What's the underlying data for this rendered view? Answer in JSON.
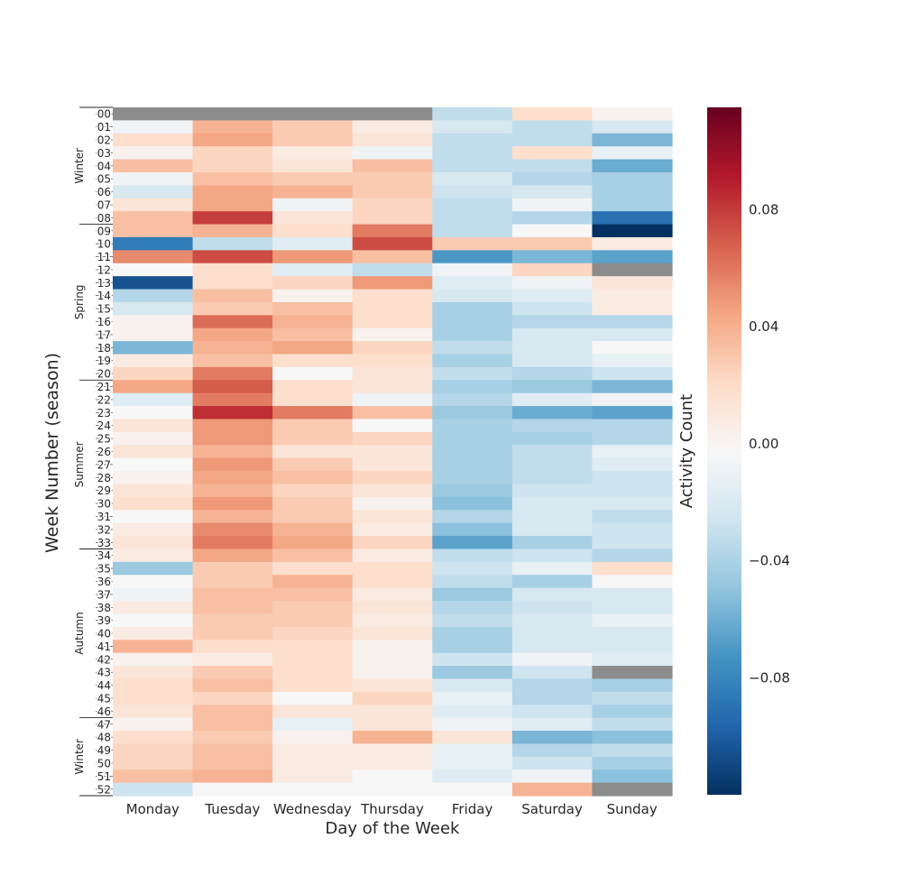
{
  "chart_data": {
    "type": "heatmap",
    "xlabel": "Day of the Week",
    "ylabel": "Week Number (season)",
    "colorbar_label": "Activity Count",
    "colormap": "RdBu_r",
    "vmin": -0.12,
    "vmax": 0.115,
    "colorbar_ticks": [
      {
        "value": 0.08,
        "label": "0.08"
      },
      {
        "value": 0.04,
        "label": "0.04"
      },
      {
        "value": 0.0,
        "label": "0.00"
      },
      {
        "value": -0.04,
        "label": "−0.04"
      },
      {
        "value": -0.08,
        "label": "−0.08"
      }
    ],
    "missing_color": "#8c8c8c",
    "columns": [
      "Monday",
      "Tuesday",
      "Wednesday",
      "Thursday",
      "Friday",
      "Saturday",
      "Sunday"
    ],
    "rows": [
      "00",
      "01",
      "02",
      "03",
      "04",
      "05",
      "06",
      "07",
      "08",
      "09",
      "10",
      "11",
      "12",
      "13",
      "14",
      "15",
      "16",
      "17",
      "18",
      "19",
      "20",
      "21",
      "22",
      "23",
      "24",
      "25",
      "26",
      "27",
      "28",
      "29",
      "30",
      "31",
      "32",
      "33",
      "34",
      "35",
      "36",
      "37",
      "38",
      "39",
      "40",
      "41",
      "42",
      "43",
      "44",
      "45",
      "46",
      "47",
      "48",
      "49",
      "50",
      "51",
      "52"
    ],
    "seasons": [
      {
        "name": "Winter",
        "start": 0,
        "end": 9
      },
      {
        "name": "Spring",
        "start": 9,
        "end": 21
      },
      {
        "name": "Summer",
        "start": 21,
        "end": 34
      },
      {
        "name": "Autumn",
        "start": 34,
        "end": 47
      },
      {
        "name": "Winter",
        "start": 47,
        "end": 53
      }
    ],
    "values": [
      [
        null,
        null,
        null,
        null,
        -0.03,
        0.02,
        0.005
      ],
      [
        -0.005,
        0.04,
        0.03,
        0.01,
        -0.02,
        -0.03,
        -0.02
      ],
      [
        0.02,
        0.045,
        0.03,
        0.015,
        -0.03,
        -0.03,
        -0.055
      ],
      [
        0.005,
        0.025,
        0.01,
        -0.005,
        -0.03,
        0.02,
        -0.01
      ],
      [
        0.035,
        0.025,
        0.015,
        0.035,
        -0.03,
        -0.03,
        -0.06
      ],
      [
        -0.005,
        0.035,
        0.03,
        0.03,
        -0.02,
        -0.035,
        -0.04
      ],
      [
        -0.02,
        0.045,
        0.04,
        0.03,
        -0.025,
        -0.02,
        -0.04
      ],
      [
        0.015,
        0.045,
        -0.005,
        0.025,
        -0.03,
        -0.005,
        -0.04
      ],
      [
        0.035,
        0.08,
        0.015,
        0.025,
        -0.03,
        -0.035,
        -0.09
      ],
      [
        0.035,
        0.04,
        0.02,
        0.06,
        -0.03,
        0.0,
        -0.12
      ],
      [
        -0.085,
        -0.03,
        -0.015,
        0.075,
        0.03,
        0.03,
        0.01
      ],
      [
        0.055,
        0.075,
        0.05,
        0.035,
        -0.07,
        -0.055,
        -0.065
      ],
      [
        0.0,
        0.02,
        -0.015,
        -0.03,
        -0.005,
        0.025,
        null
      ],
      [
        -0.105,
        0.02,
        0.025,
        0.05,
        -0.015,
        -0.005,
        0.015
      ],
      [
        -0.035,
        0.035,
        0.005,
        0.02,
        -0.02,
        -0.015,
        0.01
      ],
      [
        -0.02,
        0.03,
        0.035,
        0.02,
        -0.04,
        -0.025,
        0.01
      ],
      [
        0.005,
        0.065,
        0.04,
        0.02,
        -0.04,
        -0.035,
        -0.035
      ],
      [
        0.005,
        0.045,
        0.035,
        0.005,
        -0.04,
        -0.02,
        -0.02
      ],
      [
        -0.055,
        0.04,
        0.045,
        0.025,
        -0.03,
        -0.02,
        0.0
      ],
      [
        0.01,
        0.035,
        0.02,
        0.02,
        -0.04,
        -0.02,
        -0.01
      ],
      [
        0.025,
        0.06,
        0.0,
        0.015,
        -0.03,
        -0.035,
        -0.025
      ],
      [
        0.045,
        0.07,
        0.02,
        0.015,
        -0.04,
        -0.045,
        -0.055
      ],
      [
        -0.015,
        0.06,
        0.02,
        -0.005,
        -0.035,
        -0.015,
        -0.005
      ],
      [
        0.0,
        0.085,
        0.06,
        0.035,
        -0.045,
        -0.06,
        -0.065
      ],
      [
        0.015,
        0.05,
        0.03,
        0.0,
        -0.04,
        -0.035,
        -0.035
      ],
      [
        0.005,
        0.05,
        0.03,
        0.025,
        -0.04,
        -0.04,
        -0.035
      ],
      [
        0.015,
        0.04,
        0.015,
        0.015,
        -0.04,
        -0.03,
        -0.01
      ],
      [
        0.0,
        0.05,
        0.03,
        0.015,
        -0.04,
        -0.03,
        -0.015
      ],
      [
        0.005,
        0.045,
        0.035,
        0.025,
        -0.04,
        -0.03,
        -0.025
      ],
      [
        0.015,
        0.04,
        0.025,
        0.015,
        -0.045,
        -0.025,
        -0.025
      ],
      [
        0.02,
        0.05,
        0.03,
        0.005,
        -0.05,
        -0.02,
        -0.02
      ],
      [
        0.0,
        0.04,
        0.03,
        0.015,
        -0.035,
        -0.02,
        -0.03
      ],
      [
        0.01,
        0.055,
        0.04,
        0.01,
        -0.05,
        -0.02,
        -0.025
      ],
      [
        0.015,
        0.06,
        0.045,
        0.025,
        -0.065,
        -0.04,
        -0.025
      ],
      [
        0.01,
        0.045,
        0.035,
        0.01,
        -0.03,
        -0.025,
        -0.035
      ],
      [
        -0.045,
        0.03,
        0.02,
        0.02,
        -0.025,
        -0.01,
        0.02
      ],
      [
        0.0,
        0.03,
        0.04,
        0.02,
        -0.03,
        -0.04,
        0.0
      ],
      [
        -0.005,
        0.035,
        0.035,
        0.01,
        -0.045,
        -0.02,
        -0.02
      ],
      [
        0.01,
        0.035,
        0.03,
        0.015,
        -0.035,
        -0.025,
        -0.02
      ],
      [
        0.0,
        0.03,
        0.03,
        0.01,
        -0.03,
        -0.02,
        -0.01
      ],
      [
        0.01,
        0.03,
        0.025,
        0.015,
        -0.04,
        -0.02,
        -0.02
      ],
      [
        0.04,
        0.02,
        0.02,
        0.005,
        -0.04,
        -0.02,
        -0.02
      ],
      [
        0.005,
        0.01,
        0.02,
        0.005,
        -0.025,
        -0.005,
        -0.015
      ],
      [
        0.015,
        0.03,
        0.02,
        0.005,
        -0.045,
        -0.025,
        null
      ],
      [
        0.02,
        0.035,
        0.02,
        0.015,
        -0.02,
        -0.035,
        -0.04
      ],
      [
        0.02,
        0.025,
        0.0,
        0.025,
        -0.01,
        -0.035,
        -0.03
      ],
      [
        0.015,
        0.035,
        0.015,
        0.015,
        -0.015,
        -0.025,
        -0.04
      ],
      [
        0.005,
        0.035,
        -0.01,
        0.015,
        -0.005,
        -0.015,
        -0.03
      ],
      [
        0.02,
        0.03,
        0.005,
        0.04,
        0.015,
        -0.055,
        -0.05
      ],
      [
        0.025,
        0.035,
        0.01,
        0.01,
        -0.01,
        -0.035,
        -0.03
      ],
      [
        0.025,
        0.035,
        0.01,
        0.01,
        -0.01,
        -0.025,
        -0.04
      ],
      [
        0.035,
        0.04,
        0.01,
        0.0,
        -0.015,
        -0.005,
        -0.05
      ],
      [
        -0.025,
        0.0,
        0.0,
        0.0,
        0.0,
        0.04,
        null
      ]
    ]
  }
}
